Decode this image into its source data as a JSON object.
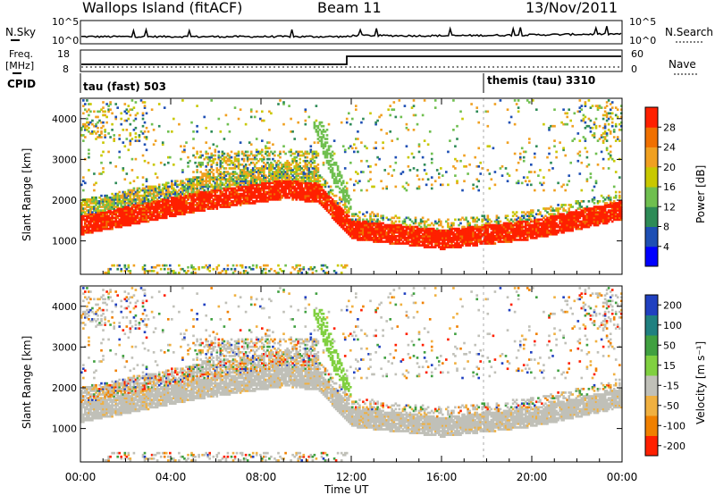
{
  "header": {
    "station": "Wallops Island (fitACF)",
    "beam": "Beam 11",
    "date": "13/Nov/2011"
  },
  "side_labels": {
    "nsky": "N.Sky",
    "nsearch": "N.Search",
    "freq_line1": "Freq.",
    "freq_line2": "[MHz]",
    "nave": "Nave",
    "cpid": "CPID"
  },
  "nsky_axis": {
    "top": "10^5",
    "bottom": "10^0"
  },
  "freq_axis": {
    "top": "18",
    "bottom": "8"
  },
  "nave_axis": {
    "top": "60",
    "bottom": "0"
  },
  "cpid_labels": [
    "tau (fast) 503",
    "themis (tau) 3310"
  ],
  "chart_data": [
    {
      "type": "heatmap",
      "name": "power",
      "ylabel": "Slant Range [km]",
      "xlabel": "",
      "x_ticks": [
        "00:00",
        "04:00",
        "08:00",
        "12:00",
        "16:00",
        "20:00",
        "00:00"
      ],
      "x_range_hours": [
        0,
        24
      ],
      "y_ticks": [
        1000,
        2000,
        3000,
        4000
      ],
      "y_range": [
        180,
        4500
      ],
      "colorbar": {
        "label": "Power [dB]",
        "ticks": [
          "4",
          "8",
          "12",
          "16",
          "20",
          "24",
          "28"
        ],
        "range": [
          0,
          32
        ],
        "colors": [
          "#0000ff",
          "#1e4fb4",
          "#2e8b57",
          "#6fbf4f",
          "#c8c800",
          "#f0a020",
          "#f07000",
          "#ff2000"
        ]
      },
      "mode_change_time": "18:00"
    },
    {
      "type": "heatmap",
      "name": "velocity",
      "ylabel": "Slant Range [km]",
      "xlabel": "Time UT",
      "x_ticks": [
        "00:00",
        "04:00",
        "08:00",
        "12:00",
        "16:00",
        "20:00",
        "00:00"
      ],
      "x_range_hours": [
        0,
        24
      ],
      "y_ticks": [
        1000,
        2000,
        3000,
        4000
      ],
      "y_range": [
        180,
        4500
      ],
      "colorbar": {
        "label": "Velocity [m s⁻¹]",
        "ticks": [
          "200",
          "100",
          "50",
          "15",
          "-15",
          "-50",
          "-100",
          "-200"
        ],
        "colors": [
          "#2040c0",
          "#208080",
          "#40a040",
          "#80d040",
          "#c0c0b8",
          "#f0b040",
          "#f08000",
          "#ff2000"
        ]
      }
    }
  ]
}
